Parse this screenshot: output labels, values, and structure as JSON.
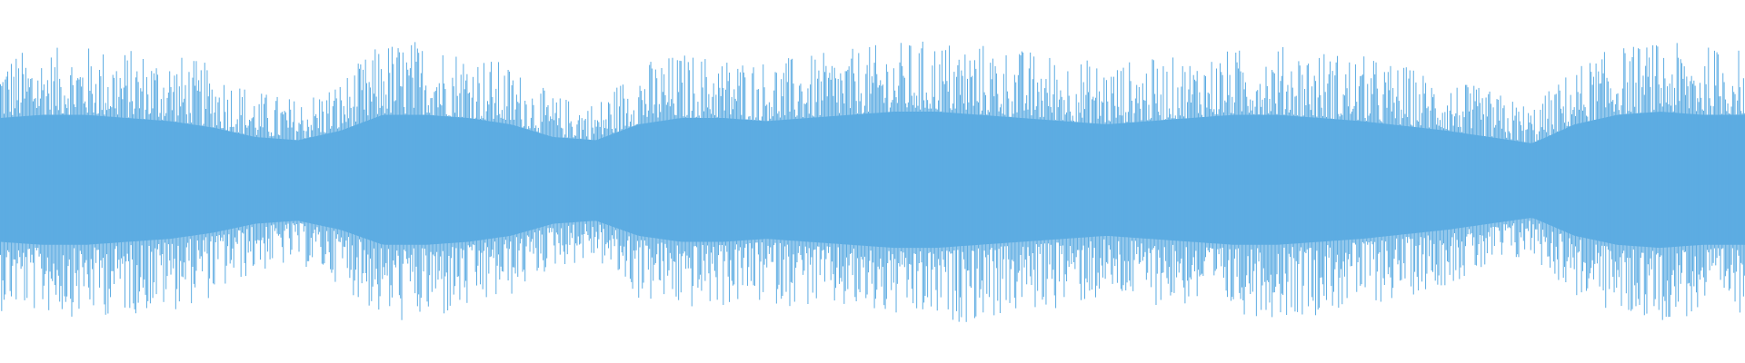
{
  "chart_data": {
    "type": "bar",
    "title": "",
    "xlabel": "",
    "ylabel": "",
    "ylim": [
      -1,
      1
    ],
    "grid": false,
    "color": "#5dace2",
    "background": "#ffffff",
    "envelope_peak": [
      0.78,
      0.8,
      0.82,
      0.8,
      0.78,
      0.7,
      0.55,
      0.5,
      0.62,
      0.85,
      0.86,
      0.8,
      0.7,
      0.52,
      0.48,
      0.72,
      0.78,
      0.76,
      0.74,
      0.76,
      0.8,
      0.84,
      0.86,
      0.84,
      0.8,
      0.76,
      0.72,
      0.74,
      0.76,
      0.8,
      0.82,
      0.8,
      0.76,
      0.7,
      0.62,
      0.55,
      0.46,
      0.7,
      0.82,
      0.84,
      0.82,
      0.8
    ],
    "envelope_core": [
      0.4,
      0.42,
      0.42,
      0.4,
      0.38,
      0.34,
      0.28,
      0.26,
      0.32,
      0.42,
      0.42,
      0.4,
      0.36,
      0.28,
      0.26,
      0.36,
      0.4,
      0.4,
      0.38,
      0.4,
      0.42,
      0.44,
      0.44,
      0.42,
      0.4,
      0.38,
      0.36,
      0.38,
      0.4,
      0.42,
      0.42,
      0.4,
      0.38,
      0.35,
      0.32,
      0.28,
      0.24,
      0.36,
      0.42,
      0.44,
      0.42,
      0.42
    ]
  }
}
